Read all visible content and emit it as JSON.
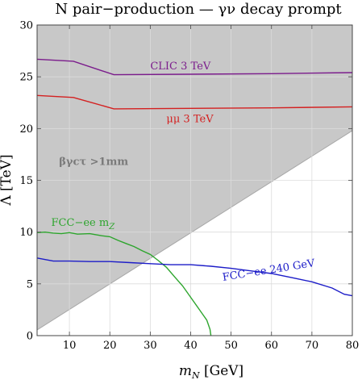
{
  "chart_data": {
    "type": "line",
    "title": "N pair−production — γν decay prompt",
    "xlabel": "m",
    "xlabel_sub": "N",
    "xlabel_unit": " [GeV]",
    "ylabel": "Λ [TeV]",
    "xlim": [
      2,
      80
    ],
    "ylim": [
      0,
      30
    ],
    "xticks": [
      10,
      20,
      30,
      40,
      50,
      60,
      70,
      80
    ],
    "yticks": [
      0,
      5,
      10,
      15,
      20,
      25,
      30
    ],
    "grid": true,
    "region": {
      "label": "βγcτ >1mm",
      "color": "#c8c8c8",
      "label_at": [
        16,
        16.5
      ],
      "boundary": [
        [
          2,
          0.55
        ],
        [
          80,
          19.8
        ]
      ]
    },
    "series": [
      {
        "name": "CLIC 3 TeV",
        "color": "#7b1c8c",
        "label_at": [
          30,
          25.7
        ],
        "points": [
          [
            2,
            26.7
          ],
          [
            11,
            26.5
          ],
          [
            21,
            25.2
          ],
          [
            40,
            25.25
          ],
          [
            60,
            25.3
          ],
          [
            80,
            25.4
          ]
        ]
      },
      {
        "name": "μμ 3 TeV",
        "color": "#d42020",
        "label_at": [
          34,
          20.6
        ],
        "points": [
          [
            2,
            23.2
          ],
          [
            11,
            23.0
          ],
          [
            21,
            21.9
          ],
          [
            40,
            21.95
          ],
          [
            60,
            22.0
          ],
          [
            80,
            22.1
          ]
        ]
      },
      {
        "name": "FCC−ee m",
        "name_sub": "Z",
        "color": "#2da52d",
        "label_at": [
          5.5,
          10.6
        ],
        "points": [
          [
            2,
            9.95
          ],
          [
            4,
            10.0
          ],
          [
            6,
            9.9
          ],
          [
            8,
            9.85
          ],
          [
            10,
            9.95
          ],
          [
            12,
            9.8
          ],
          [
            15,
            9.85
          ],
          [
            18,
            9.65
          ],
          [
            20,
            9.55
          ],
          [
            22,
            9.2
          ],
          [
            24,
            8.9
          ],
          [
            26,
            8.6
          ],
          [
            28,
            8.2
          ],
          [
            30,
            7.85
          ],
          [
            32,
            7.25
          ],
          [
            34,
            6.6
          ],
          [
            36,
            5.7
          ],
          [
            38,
            4.8
          ],
          [
            40,
            3.7
          ],
          [
            42,
            2.6
          ],
          [
            44,
            1.5
          ],
          [
            44.8,
            0.6
          ],
          [
            45,
            0
          ]
        ]
      },
      {
        "name": "FCC−ee 240 GeV",
        "color": "#1c1cc8",
        "label_at": [
          48,
          5.3
        ],
        "label_rotate": -9,
        "points": [
          [
            2,
            7.5
          ],
          [
            6,
            7.2
          ],
          [
            10,
            7.2
          ],
          [
            15,
            7.15
          ],
          [
            20,
            7.15
          ],
          [
            25,
            7.05
          ],
          [
            30,
            6.95
          ],
          [
            35,
            6.85
          ],
          [
            40,
            6.85
          ],
          [
            45,
            6.7
          ],
          [
            50,
            6.5
          ],
          [
            55,
            6.25
          ],
          [
            60,
            6.0
          ],
          [
            65,
            5.6
          ],
          [
            70,
            5.2
          ],
          [
            75,
            4.6
          ],
          [
            78,
            4.0
          ],
          [
            80,
            3.85
          ]
        ]
      }
    ]
  }
}
